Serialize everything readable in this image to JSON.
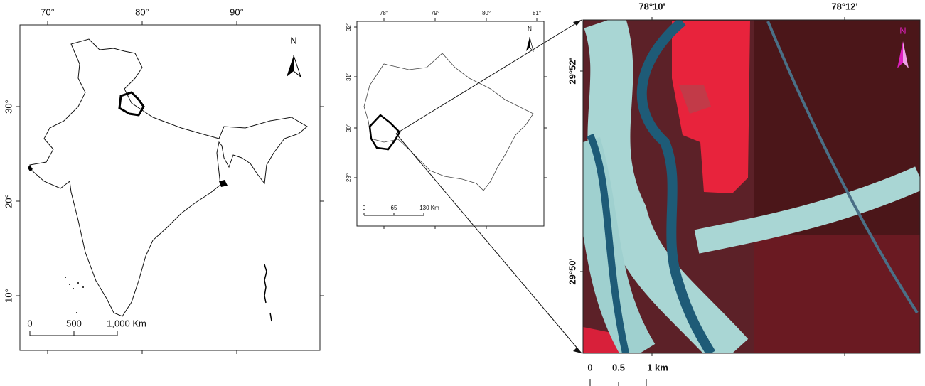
{
  "maps": [
    {
      "top_labels": [
        "70°",
        "80°",
        "90°"
      ],
      "left_labels": [
        "30°",
        "20°",
        "10°"
      ],
      "north": "N",
      "scale_labels": [
        "0",
        "500",
        "1,000 Km"
      ]
    },
    {
      "top_labels": [
        "78°",
        "79°",
        "80°",
        "81°"
      ],
      "left_labels": [
        "32°",
        "31°",
        "30°",
        "29°"
      ],
      "north": "N",
      "scale_labels": [
        "0",
        "65",
        "130 Km"
      ]
    },
    {
      "top_labels": [
        "78°10'",
        "78°12'"
      ],
      "left_labels": [
        "29°52'",
        "29°50'"
      ],
      "north": "N",
      "scale_labels": [
        "0",
        "0.5",
        "1 km"
      ]
    }
  ]
}
